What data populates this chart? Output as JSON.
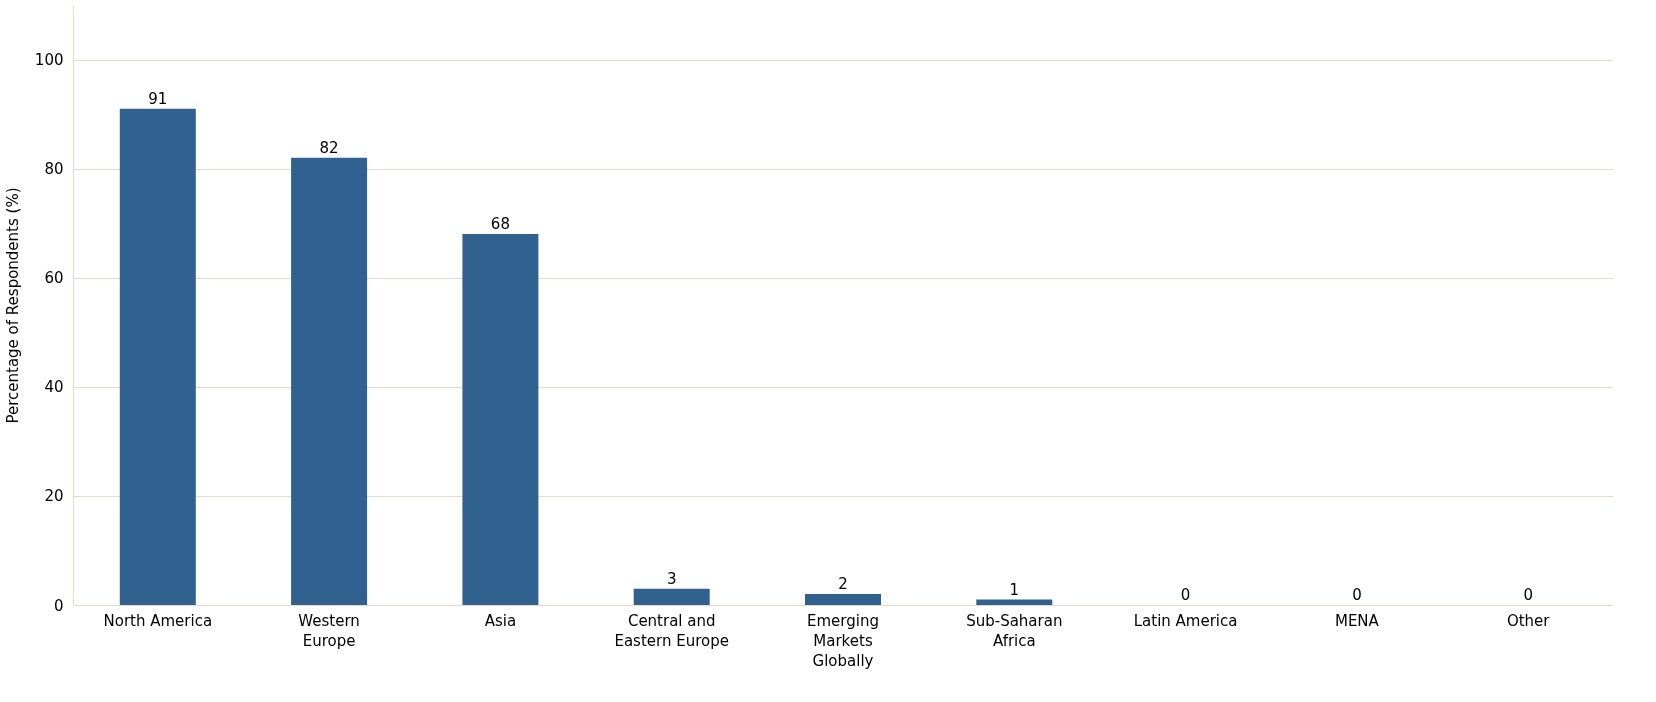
{
  "chart_data": {
    "type": "bar",
    "ylabel": "Percentage of Respondents (%)",
    "categories": [
      "North America",
      "Western\nEurope",
      "Asia",
      "Central and\nEastern Europe",
      "Emerging\nMarkets\nGlobally",
      "Sub-Saharan\nAfrica",
      "Latin America",
      "MENA",
      "Other"
    ],
    "values": [
      91,
      82,
      68,
      3,
      2,
      1,
      0,
      0,
      0
    ],
    "color": "#31628f",
    "ylim": [
      0,
      110
    ],
    "yticks": [
      0,
      20,
      40,
      60,
      80,
      100
    ],
    "grid": "y",
    "data_labels": true
  }
}
